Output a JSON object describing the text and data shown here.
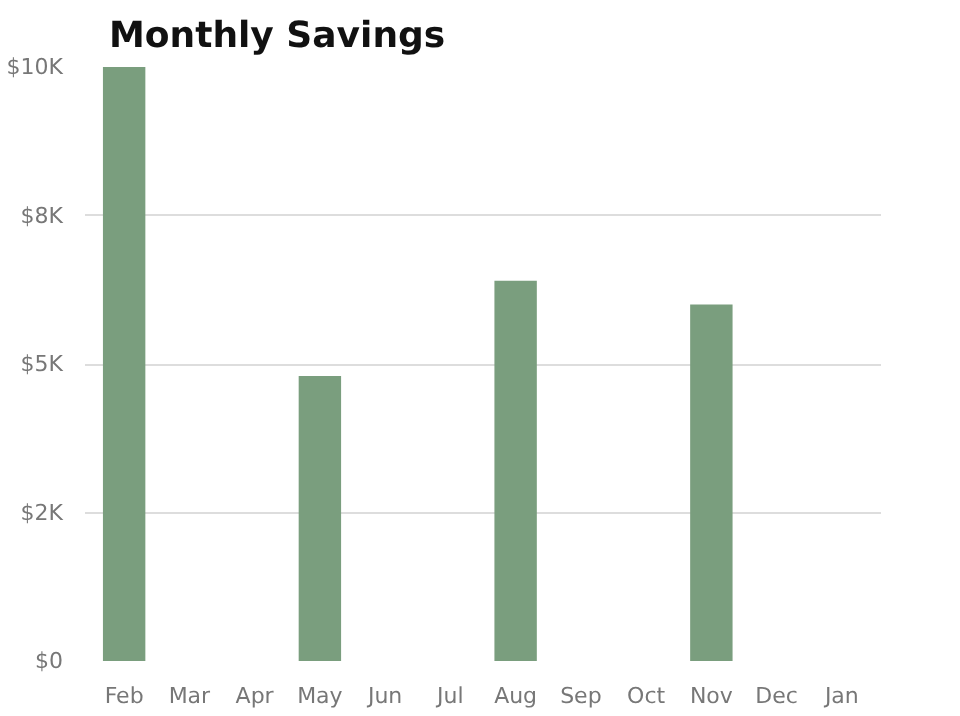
{
  "chart_data": {
    "type": "bar",
    "title": "Monthly Savings",
    "categories": [
      "Feb",
      "Mar",
      "Apr",
      "May",
      "Jun",
      "Jul",
      "Aug",
      "Sep",
      "Oct",
      "Nov",
      "Dec",
      "Jan"
    ],
    "values": [
      10000,
      0,
      0,
      4800,
      0,
      0,
      6400,
      0,
      0,
      6000,
      0,
      0
    ],
    "color": "#7a9e7e",
    "ylim": [
      0,
      10000
    ],
    "yticks": [
      {
        "value": 0,
        "label": "$0"
      },
      {
        "value": 2500,
        "label": "$2K"
      },
      {
        "value": 5000,
        "label": "$5K"
      },
      {
        "value": 7500,
        "label": "$8K"
      },
      {
        "value": 10000,
        "label": "$10K"
      }
    ],
    "grid": "y"
  }
}
